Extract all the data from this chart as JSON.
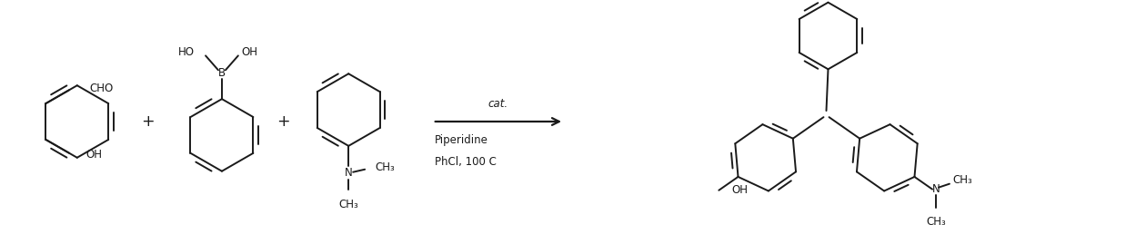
{
  "background_color": "#ffffff",
  "line_color": "#1a1a1a",
  "line_width": 1.4,
  "font_size": 8.5,
  "fig_width": 12.38,
  "fig_height": 2.69,
  "arrow_text_above": "cat.",
  "arrow_text_line1": "Piperidine",
  "arrow_text_line2": "PhCl, 100 C"
}
